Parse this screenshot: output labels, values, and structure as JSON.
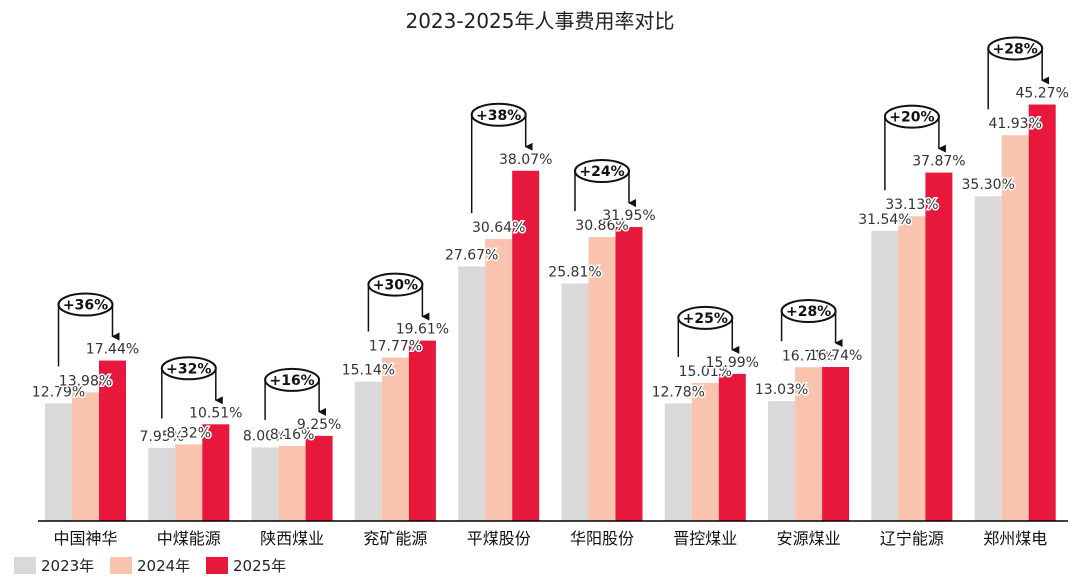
{
  "chart_data": {
    "type": "bar",
    "title": "2023-2025年人事费用率对比",
    "xlabel": "",
    "ylabel": "",
    "ylim": [
      0,
      50
    ],
    "grid": false,
    "legend": "bottom-left",
    "categories": [
      "中国神华",
      "中煤能源",
      "陕西煤业",
      "兖矿能源",
      "平煤股份",
      "华阳股份",
      "晋控煤业",
      "安源煤业",
      "辽宁能源",
      "郑州煤电"
    ],
    "series": [
      {
        "name": "2023年",
        "color": "#d9d9d9",
        "values": [
          12.79,
          7.95,
          8.0,
          15.14,
          27.67,
          25.81,
          12.78,
          13.03,
          31.54,
          35.3
        ],
        "labels": [
          "12.79%",
          "7.95%",
          "8.00%",
          "15.14%",
          "27.67%",
          "25.81%",
          "12.78%",
          "13.03%",
          "31.54%",
          "35.30%"
        ]
      },
      {
        "name": "2024年",
        "color": "#f8c4ad",
        "values": [
          13.98,
          8.32,
          8.16,
          17.77,
          30.64,
          30.86,
          15.01,
          16.71,
          33.13,
          41.93
        ],
        "labels": [
          "13.98%",
          "8.32%",
          "8.16%",
          "17.77%",
          "30.64%",
          "30.86%",
          "15.01%",
          "16.71%",
          "33.13%",
          "41.93%"
        ]
      },
      {
        "name": "2025年",
        "color": "#e8173c",
        "values": [
          17.44,
          10.51,
          9.25,
          19.61,
          38.07,
          31.95,
          15.99,
          16.74,
          37.87,
          45.27
        ],
        "labels": [
          "17.44%",
          "10.51%",
          "9.25%",
          "19.61%",
          "38.07%",
          "31.95%",
          "15.99%",
          "16.74%",
          "37.87%",
          "45.27%"
        ]
      }
    ],
    "annotations": [
      "+36%",
      "+32%",
      "+16%",
      "+30%",
      "+38%",
      "+24%",
      "+25%",
      "+28%",
      "+20%",
      "+28%"
    ]
  }
}
